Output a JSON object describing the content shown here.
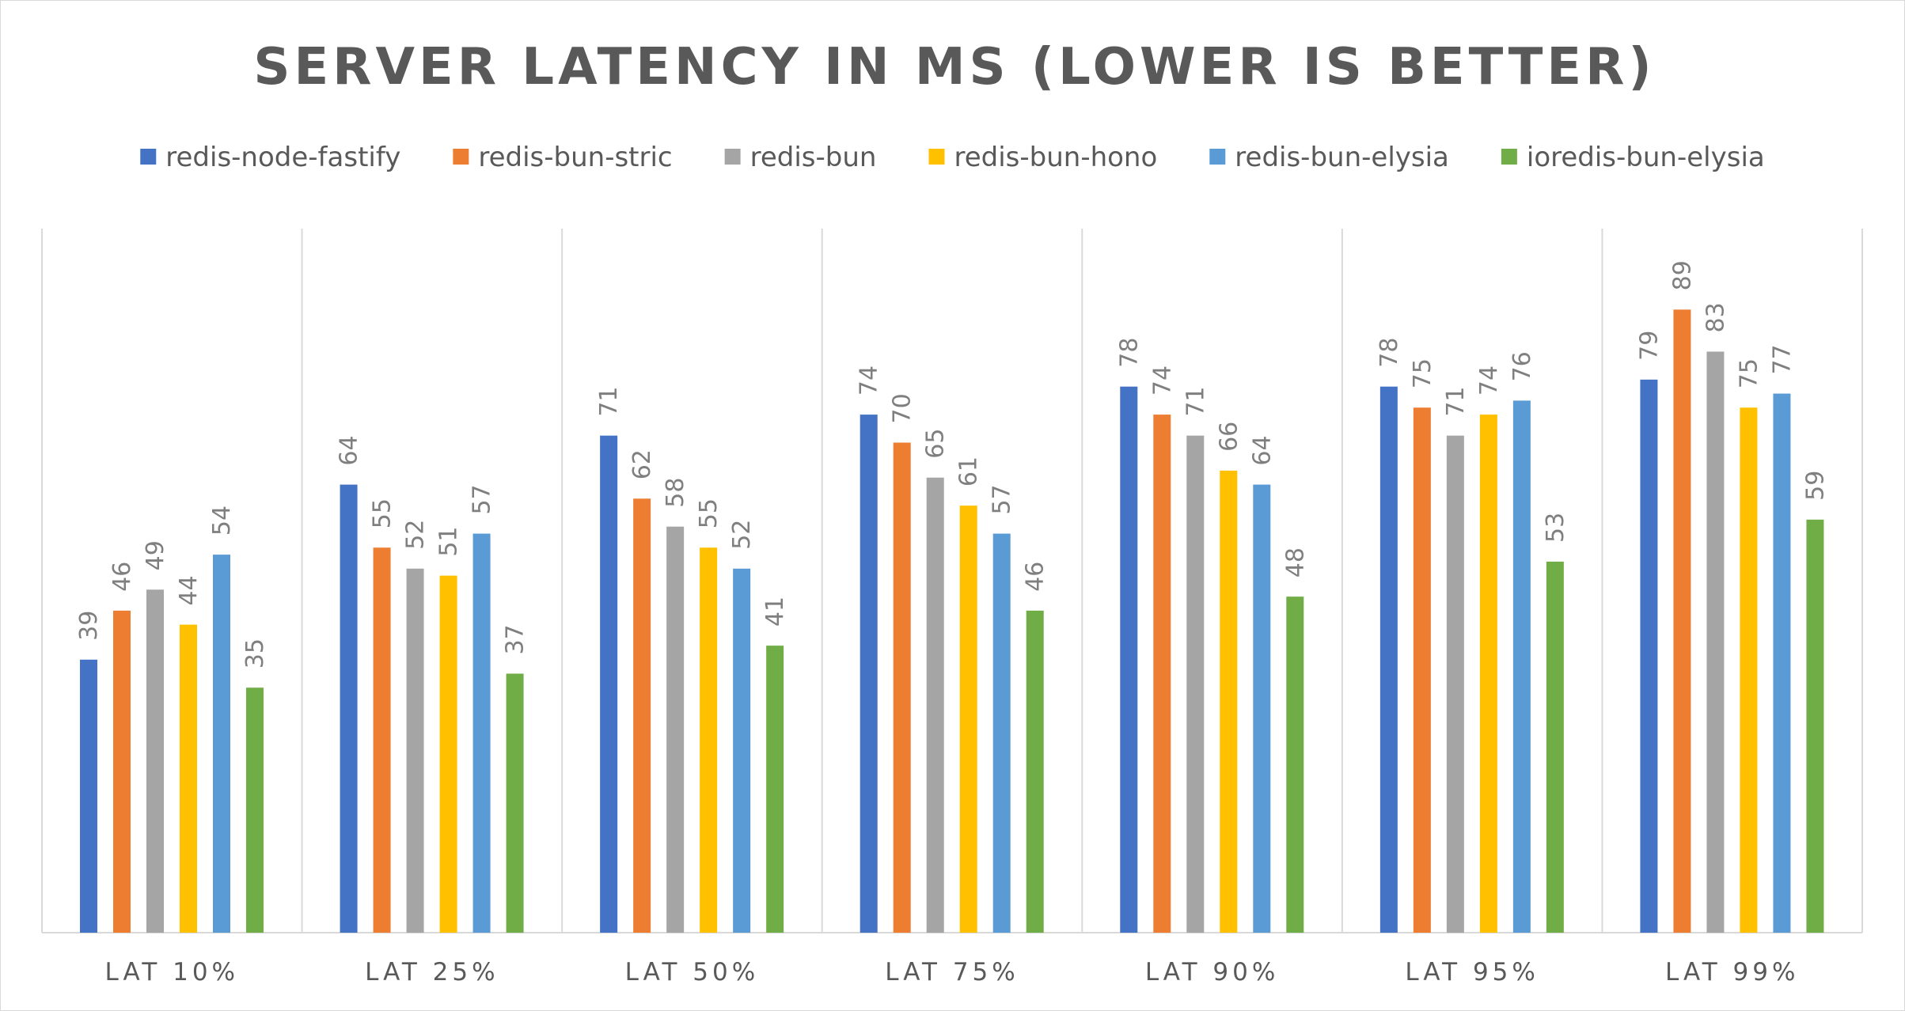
{
  "chart_data": {
    "type": "bar",
    "title": "SERVER LATENCY IN MS (LOWER IS BETTER)",
    "xlabel": "",
    "ylabel": "",
    "categories": [
      "LAT 10%",
      "LAT 25%",
      "LAT 50%",
      "LAT 75%",
      "LAT 90%",
      "LAT 95%",
      "LAT 99%"
    ],
    "series": [
      {
        "name": "redis-node-fastify",
        "color": "#4472c4",
        "values": [
          39,
          64,
          71,
          74,
          78,
          78,
          79
        ]
      },
      {
        "name": "redis-bun-stric",
        "color": "#ed7d31",
        "values": [
          46,
          55,
          62,
          70,
          74,
          75,
          89
        ]
      },
      {
        "name": "redis-bun",
        "color": "#a5a5a5",
        "values": [
          49,
          52,
          58,
          65,
          71,
          71,
          83
        ]
      },
      {
        "name": "redis-bun-hono",
        "color": "#ffc000",
        "values": [
          44,
          51,
          55,
          61,
          66,
          74,
          75
        ]
      },
      {
        "name": "redis-bun-elysia",
        "color": "#5b9bd5",
        "values": [
          54,
          57,
          52,
          57,
          64,
          76,
          77
        ]
      },
      {
        "name": "ioredis-bun-elysia",
        "color": "#70ad47",
        "values": [
          35,
          37,
          41,
          46,
          48,
          53,
          59
        ]
      }
    ],
    "ylim": [
      0,
      100
    ],
    "grid": false,
    "legend": "top",
    "data_labels": true
  }
}
